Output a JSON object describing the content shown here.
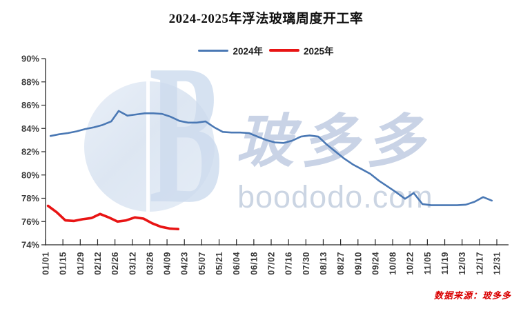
{
  "source_note": "数据来源：玻多多",
  "watermark": {
    "logo_letter": "B",
    "brand_cn": "玻多多",
    "brand_url": "boododo.com",
    "watermark_color": "#c5d0e4",
    "globe_color": "#dce6f2"
  },
  "chart_data": {
    "type": "line",
    "title": "2024-2025年浮法玻璃周度开工率",
    "xlabel": "",
    "ylabel": "",
    "ylim": [
      74,
      90
    ],
    "ytick_step": 2,
    "y_tick_labels": [
      "74%",
      "76%",
      "78%",
      "80%",
      "82%",
      "84%",
      "86%",
      "88%",
      "90%"
    ],
    "x_tick_labels": [
      "01/01",
      "01/15",
      "01/29",
      "02/12",
      "02/26",
      "03/12",
      "03/26",
      "04/09",
      "04/23",
      "05/07",
      "05/21",
      "06/04",
      "06/18",
      "07/02",
      "07/16",
      "07/30",
      "08/13",
      "08/27",
      "09/10",
      "09/24",
      "10/08",
      "10/22",
      "11/05",
      "11/19",
      "12/03",
      "12/17",
      "12/31"
    ],
    "grid": false,
    "legend_position": "top-center",
    "axis_color": "#262626",
    "tick_label_color": "#3a3a3a",
    "series": [
      {
        "name": "2024年",
        "color": "#4a78b4",
        "stroke_width": 2.6,
        "x": [
          "01/05",
          "01/12",
          "01/19",
          "01/26",
          "02/02",
          "02/09",
          "02/16",
          "02/23",
          "03/01",
          "03/08",
          "03/15",
          "03/22",
          "03/29",
          "04/05",
          "04/12",
          "04/19",
          "04/26",
          "05/03",
          "05/10",
          "05/17",
          "05/24",
          "05/31",
          "06/07",
          "06/14",
          "06/21",
          "06/28",
          "07/05",
          "07/12",
          "07/19",
          "07/26",
          "08/02",
          "08/09",
          "08/16",
          "08/23",
          "08/30",
          "09/06",
          "09/13",
          "09/20",
          "09/27",
          "10/04",
          "10/11",
          "10/18",
          "10/25",
          "11/01",
          "11/08",
          "11/15",
          "11/22",
          "11/29",
          "12/06",
          "12/13",
          "12/20",
          "12/27"
        ],
        "values": [
          83.35,
          83.5,
          83.6,
          83.75,
          83.95,
          84.1,
          84.3,
          84.6,
          85.5,
          85.1,
          85.2,
          85.3,
          85.3,
          85.25,
          85.0,
          84.65,
          84.5,
          84.5,
          84.6,
          84.1,
          83.7,
          83.65,
          83.65,
          83.6,
          83.3,
          83.0,
          82.8,
          82.75,
          82.95,
          83.3,
          83.4,
          83.3,
          82.6,
          82.0,
          81.4,
          80.9,
          80.5,
          80.1,
          79.5,
          79.0,
          78.5,
          77.95,
          78.45,
          77.5,
          77.4,
          77.4,
          77.4,
          77.4,
          77.45,
          77.7,
          78.1,
          77.8
        ]
      },
      {
        "name": "2025年",
        "color": "#e81414",
        "stroke_width": 3.6,
        "x": [
          "01/03",
          "01/10",
          "01/17",
          "01/24",
          "01/31",
          "02/07",
          "02/14",
          "02/21",
          "02/28",
          "03/07",
          "03/14",
          "03/21",
          "03/28",
          "04/04",
          "04/11",
          "04/18"
        ],
        "values": [
          77.35,
          76.8,
          76.1,
          76.05,
          76.2,
          76.3,
          76.65,
          76.35,
          76.0,
          76.1,
          76.35,
          76.25,
          75.85,
          75.55,
          75.4,
          75.35
        ]
      }
    ]
  }
}
